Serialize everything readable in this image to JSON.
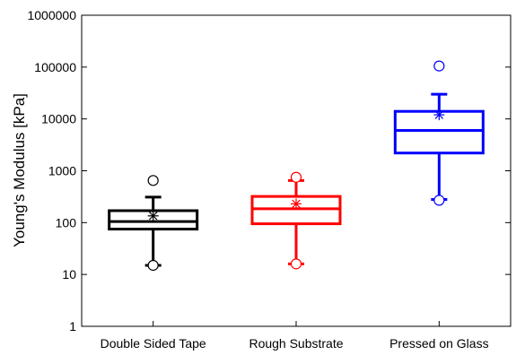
{
  "chart_data": {
    "type": "box",
    "title": "",
    "xlabel": "",
    "ylabel": "Young's Modulus [kPa]",
    "yscale": "log",
    "ylim": [
      1,
      1000000
    ],
    "yticks": [
      {
        "value": 1,
        "label": "1"
      },
      {
        "value": 10,
        "label": "10"
      },
      {
        "value": 100,
        "label": "100"
      },
      {
        "value": 1000,
        "label": "1000"
      },
      {
        "value": 10000,
        "label": "10000"
      },
      {
        "value": 100000,
        "label": "100000"
      },
      {
        "value": 1000000,
        "label": "1000000"
      }
    ],
    "grid": false,
    "legend": "none",
    "categories": [
      "Double Sided Tape",
      "Rough Substrate",
      "Pressed on Glass"
    ],
    "boxes": [
      {
        "category": "Double Sided Tape",
        "color": "#000000",
        "whisker_low": 15,
        "q1": 75,
        "median": 105,
        "q3": 170,
        "whisker_high": 310,
        "mean": 135,
        "min": 15,
        "max": 650,
        "outliers": []
      },
      {
        "category": "Rough Substrate",
        "color": "#ff0000",
        "whisker_low": 16,
        "q1": 95,
        "median": 185,
        "q3": 320,
        "whisker_high": 650,
        "mean": 230,
        "min": 16,
        "max": 750,
        "outliers": []
      },
      {
        "category": "Pressed on Glass",
        "color": "#0000ff",
        "whisker_low": 280,
        "q1": 2200,
        "median": 6000,
        "q3": 14000,
        "whisker_high": 30000,
        "mean": 12000,
        "min": 270,
        "max": 105000,
        "outliers": []
      }
    ]
  }
}
